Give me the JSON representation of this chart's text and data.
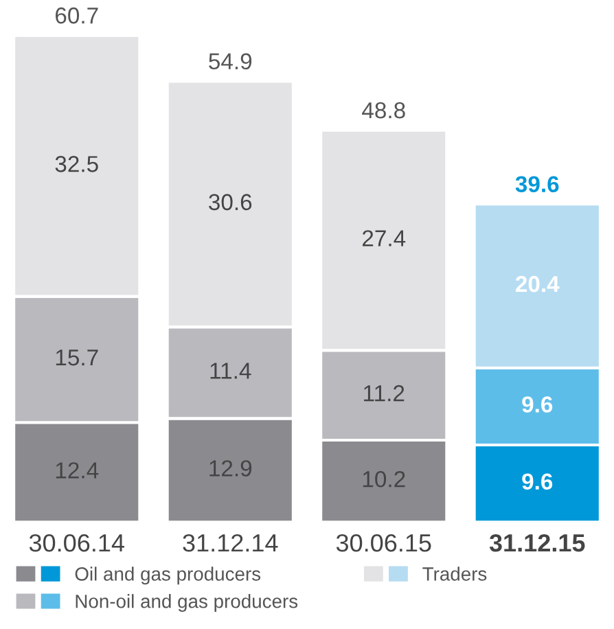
{
  "chart_data": {
    "type": "bar",
    "stacked": true,
    "categories": [
      "30.06.14",
      "31.12.14",
      "30.06.15",
      "31.12.15"
    ],
    "series": [
      {
        "name": "Oil and gas producers",
        "colors": [
          "#8b8a8f",
          "#8b8a8f",
          "#8b8a8f",
          "#0098d8"
        ],
        "values": [
          12.4,
          12.9,
          10.2,
          9.6
        ]
      },
      {
        "name": "Non-oil and gas producers",
        "colors": [
          "#bab9be",
          "#bab9be",
          "#bab9be",
          "#5dbde9"
        ],
        "values": [
          15.7,
          11.4,
          11.2,
          9.6
        ]
      },
      {
        "name": "Traders",
        "colors": [
          "#e3e3e5",
          "#e3e3e5",
          "#e3e3e5",
          "#b6dcf2"
        ],
        "values": [
          32.5,
          30.6,
          27.4,
          20.4
        ]
      }
    ],
    "totals": [
      "60.7",
      "54.9",
      "48.8",
      "39.6"
    ],
    "data_labels": true,
    "legend": "bottom",
    "tick_labels": "x",
    "grid": false
  }
}
